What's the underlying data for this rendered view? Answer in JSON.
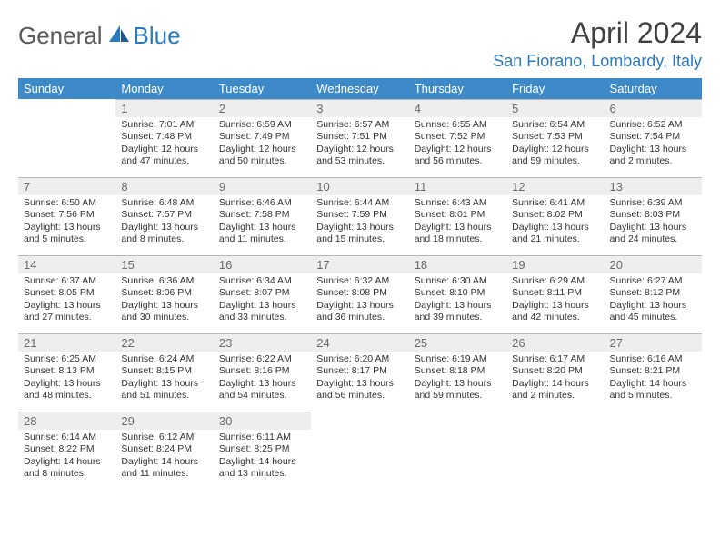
{
  "logo": {
    "part1": "General",
    "part2": "Blue"
  },
  "title": "April 2024",
  "location": "San Fiorano, Lombardy, Italy",
  "colors": {
    "header_bg": "#3e8ac9",
    "header_fg": "#ffffff",
    "daynum_bg": "#eeeeee",
    "daynum_fg": "#6a6a6a",
    "border": "#b8b8b8",
    "accent": "#2b7bbf"
  },
  "dow": [
    "Sunday",
    "Monday",
    "Tuesday",
    "Wednesday",
    "Thursday",
    "Friday",
    "Saturday"
  ],
  "weeks": [
    [
      {
        "n": "",
        "sr": "",
        "ss": "",
        "dl": ""
      },
      {
        "n": "1",
        "sr": "Sunrise: 7:01 AM",
        "ss": "Sunset: 7:48 PM",
        "dl": "Daylight: 12 hours and 47 minutes."
      },
      {
        "n": "2",
        "sr": "Sunrise: 6:59 AM",
        "ss": "Sunset: 7:49 PM",
        "dl": "Daylight: 12 hours and 50 minutes."
      },
      {
        "n": "3",
        "sr": "Sunrise: 6:57 AM",
        "ss": "Sunset: 7:51 PM",
        "dl": "Daylight: 12 hours and 53 minutes."
      },
      {
        "n": "4",
        "sr": "Sunrise: 6:55 AM",
        "ss": "Sunset: 7:52 PM",
        "dl": "Daylight: 12 hours and 56 minutes."
      },
      {
        "n": "5",
        "sr": "Sunrise: 6:54 AM",
        "ss": "Sunset: 7:53 PM",
        "dl": "Daylight: 12 hours and 59 minutes."
      },
      {
        "n": "6",
        "sr": "Sunrise: 6:52 AM",
        "ss": "Sunset: 7:54 PM",
        "dl": "Daylight: 13 hours and 2 minutes."
      }
    ],
    [
      {
        "n": "7",
        "sr": "Sunrise: 6:50 AM",
        "ss": "Sunset: 7:56 PM",
        "dl": "Daylight: 13 hours and 5 minutes."
      },
      {
        "n": "8",
        "sr": "Sunrise: 6:48 AM",
        "ss": "Sunset: 7:57 PM",
        "dl": "Daylight: 13 hours and 8 minutes."
      },
      {
        "n": "9",
        "sr": "Sunrise: 6:46 AM",
        "ss": "Sunset: 7:58 PM",
        "dl": "Daylight: 13 hours and 11 minutes."
      },
      {
        "n": "10",
        "sr": "Sunrise: 6:44 AM",
        "ss": "Sunset: 7:59 PM",
        "dl": "Daylight: 13 hours and 15 minutes."
      },
      {
        "n": "11",
        "sr": "Sunrise: 6:43 AM",
        "ss": "Sunset: 8:01 PM",
        "dl": "Daylight: 13 hours and 18 minutes."
      },
      {
        "n": "12",
        "sr": "Sunrise: 6:41 AM",
        "ss": "Sunset: 8:02 PM",
        "dl": "Daylight: 13 hours and 21 minutes."
      },
      {
        "n": "13",
        "sr": "Sunrise: 6:39 AM",
        "ss": "Sunset: 8:03 PM",
        "dl": "Daylight: 13 hours and 24 minutes."
      }
    ],
    [
      {
        "n": "14",
        "sr": "Sunrise: 6:37 AM",
        "ss": "Sunset: 8:05 PM",
        "dl": "Daylight: 13 hours and 27 minutes."
      },
      {
        "n": "15",
        "sr": "Sunrise: 6:36 AM",
        "ss": "Sunset: 8:06 PM",
        "dl": "Daylight: 13 hours and 30 minutes."
      },
      {
        "n": "16",
        "sr": "Sunrise: 6:34 AM",
        "ss": "Sunset: 8:07 PM",
        "dl": "Daylight: 13 hours and 33 minutes."
      },
      {
        "n": "17",
        "sr": "Sunrise: 6:32 AM",
        "ss": "Sunset: 8:08 PM",
        "dl": "Daylight: 13 hours and 36 minutes."
      },
      {
        "n": "18",
        "sr": "Sunrise: 6:30 AM",
        "ss": "Sunset: 8:10 PM",
        "dl": "Daylight: 13 hours and 39 minutes."
      },
      {
        "n": "19",
        "sr": "Sunrise: 6:29 AM",
        "ss": "Sunset: 8:11 PM",
        "dl": "Daylight: 13 hours and 42 minutes."
      },
      {
        "n": "20",
        "sr": "Sunrise: 6:27 AM",
        "ss": "Sunset: 8:12 PM",
        "dl": "Daylight: 13 hours and 45 minutes."
      }
    ],
    [
      {
        "n": "21",
        "sr": "Sunrise: 6:25 AM",
        "ss": "Sunset: 8:13 PM",
        "dl": "Daylight: 13 hours and 48 minutes."
      },
      {
        "n": "22",
        "sr": "Sunrise: 6:24 AM",
        "ss": "Sunset: 8:15 PM",
        "dl": "Daylight: 13 hours and 51 minutes."
      },
      {
        "n": "23",
        "sr": "Sunrise: 6:22 AM",
        "ss": "Sunset: 8:16 PM",
        "dl": "Daylight: 13 hours and 54 minutes."
      },
      {
        "n": "24",
        "sr": "Sunrise: 6:20 AM",
        "ss": "Sunset: 8:17 PM",
        "dl": "Daylight: 13 hours and 56 minutes."
      },
      {
        "n": "25",
        "sr": "Sunrise: 6:19 AM",
        "ss": "Sunset: 8:18 PM",
        "dl": "Daylight: 13 hours and 59 minutes."
      },
      {
        "n": "26",
        "sr": "Sunrise: 6:17 AM",
        "ss": "Sunset: 8:20 PM",
        "dl": "Daylight: 14 hours and 2 minutes."
      },
      {
        "n": "27",
        "sr": "Sunrise: 6:16 AM",
        "ss": "Sunset: 8:21 PM",
        "dl": "Daylight: 14 hours and 5 minutes."
      }
    ],
    [
      {
        "n": "28",
        "sr": "Sunrise: 6:14 AM",
        "ss": "Sunset: 8:22 PM",
        "dl": "Daylight: 14 hours and 8 minutes."
      },
      {
        "n": "29",
        "sr": "Sunrise: 6:12 AM",
        "ss": "Sunset: 8:24 PM",
        "dl": "Daylight: 14 hours and 11 minutes."
      },
      {
        "n": "30",
        "sr": "Sunrise: 6:11 AM",
        "ss": "Sunset: 8:25 PM",
        "dl": "Daylight: 14 hours and 13 minutes."
      },
      {
        "n": "",
        "sr": "",
        "ss": "",
        "dl": ""
      },
      {
        "n": "",
        "sr": "",
        "ss": "",
        "dl": ""
      },
      {
        "n": "",
        "sr": "",
        "ss": "",
        "dl": ""
      },
      {
        "n": "",
        "sr": "",
        "ss": "",
        "dl": ""
      }
    ]
  ]
}
